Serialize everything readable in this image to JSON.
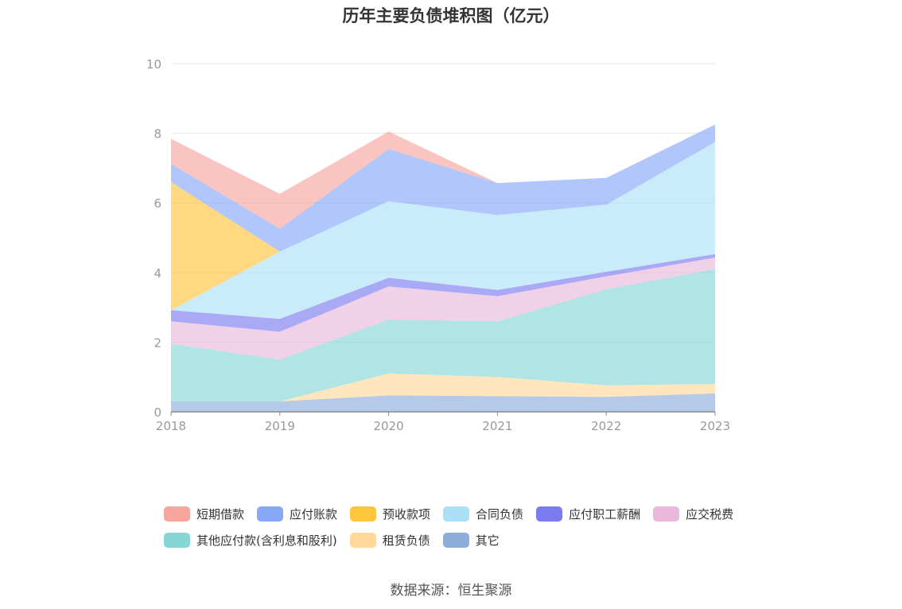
{
  "chart_data": {
    "type": "area",
    "stacked": true,
    "title": "历年主要负债堆积图（亿元）",
    "source": "数据来源：恒生聚源",
    "categories": [
      "2018",
      "2019",
      "2020",
      "2021",
      "2022",
      "2023"
    ],
    "ylim": [
      0,
      10
    ],
    "yticks": [
      "0",
      "2",
      "4",
      "6",
      "8",
      "10"
    ],
    "grid": true,
    "legend_position": "bottom",
    "series": [
      {
        "name": "其它",
        "color": "#8EADDB",
        "values": [
          0.3,
          0.3,
          0.47,
          0.45,
          0.43,
          0.53
        ]
      },
      {
        "name": "租赁负债",
        "color": "#FFD89A",
        "values": [
          0.0,
          0.0,
          0.63,
          0.55,
          0.33,
          0.27
        ]
      },
      {
        "name": "其他应付款(含利息和股利)",
        "color": "#87D6D6",
        "values": [
          1.65,
          1.2,
          1.55,
          1.6,
          2.76,
          3.3
        ]
      },
      {
        "name": "应交税费",
        "color": "#EAB9DA",
        "values": [
          0.65,
          0.8,
          0.95,
          0.72,
          0.37,
          0.33
        ]
      },
      {
        "name": "应付职工薪酬",
        "color": "#7B7BF0",
        "values": [
          0.32,
          0.37,
          0.25,
          0.18,
          0.13,
          0.1
        ]
      },
      {
        "name": "合同负债",
        "color": "#ACE0F7",
        "values": [
          0.0,
          1.93,
          2.2,
          2.15,
          1.93,
          3.22
        ]
      },
      {
        "name": "预收款项",
        "color": "#FFC53D",
        "values": [
          3.68,
          0.0,
          0.0,
          0.0,
          0.0,
          0.0
        ]
      },
      {
        "name": "应付账款",
        "color": "#87A7F7",
        "values": [
          0.52,
          0.66,
          1.5,
          0.92,
          0.77,
          0.5
        ]
      },
      {
        "name": "短期借款",
        "color": "#F8A59E",
        "values": [
          0.72,
          1.0,
          0.5,
          0.0,
          0.0,
          0.0
        ]
      }
    ],
    "legend": [
      {
        "name": "短期借款",
        "color": "#F8A59E"
      },
      {
        "name": "应付账款",
        "color": "#87A7F7"
      },
      {
        "name": "预收款项",
        "color": "#FFC53D"
      },
      {
        "name": "合同负债",
        "color": "#ACE0F7"
      },
      {
        "name": "应付职工薪酬",
        "color": "#7B7BF0"
      },
      {
        "name": "应交税费",
        "color": "#EAB9DA"
      },
      {
        "name": "其他应付款(含利息和股利)",
        "color": "#87D6D6"
      },
      {
        "name": "租赁负债",
        "color": "#FFD89A"
      },
      {
        "name": "其它",
        "color": "#8EADDB"
      }
    ]
  }
}
